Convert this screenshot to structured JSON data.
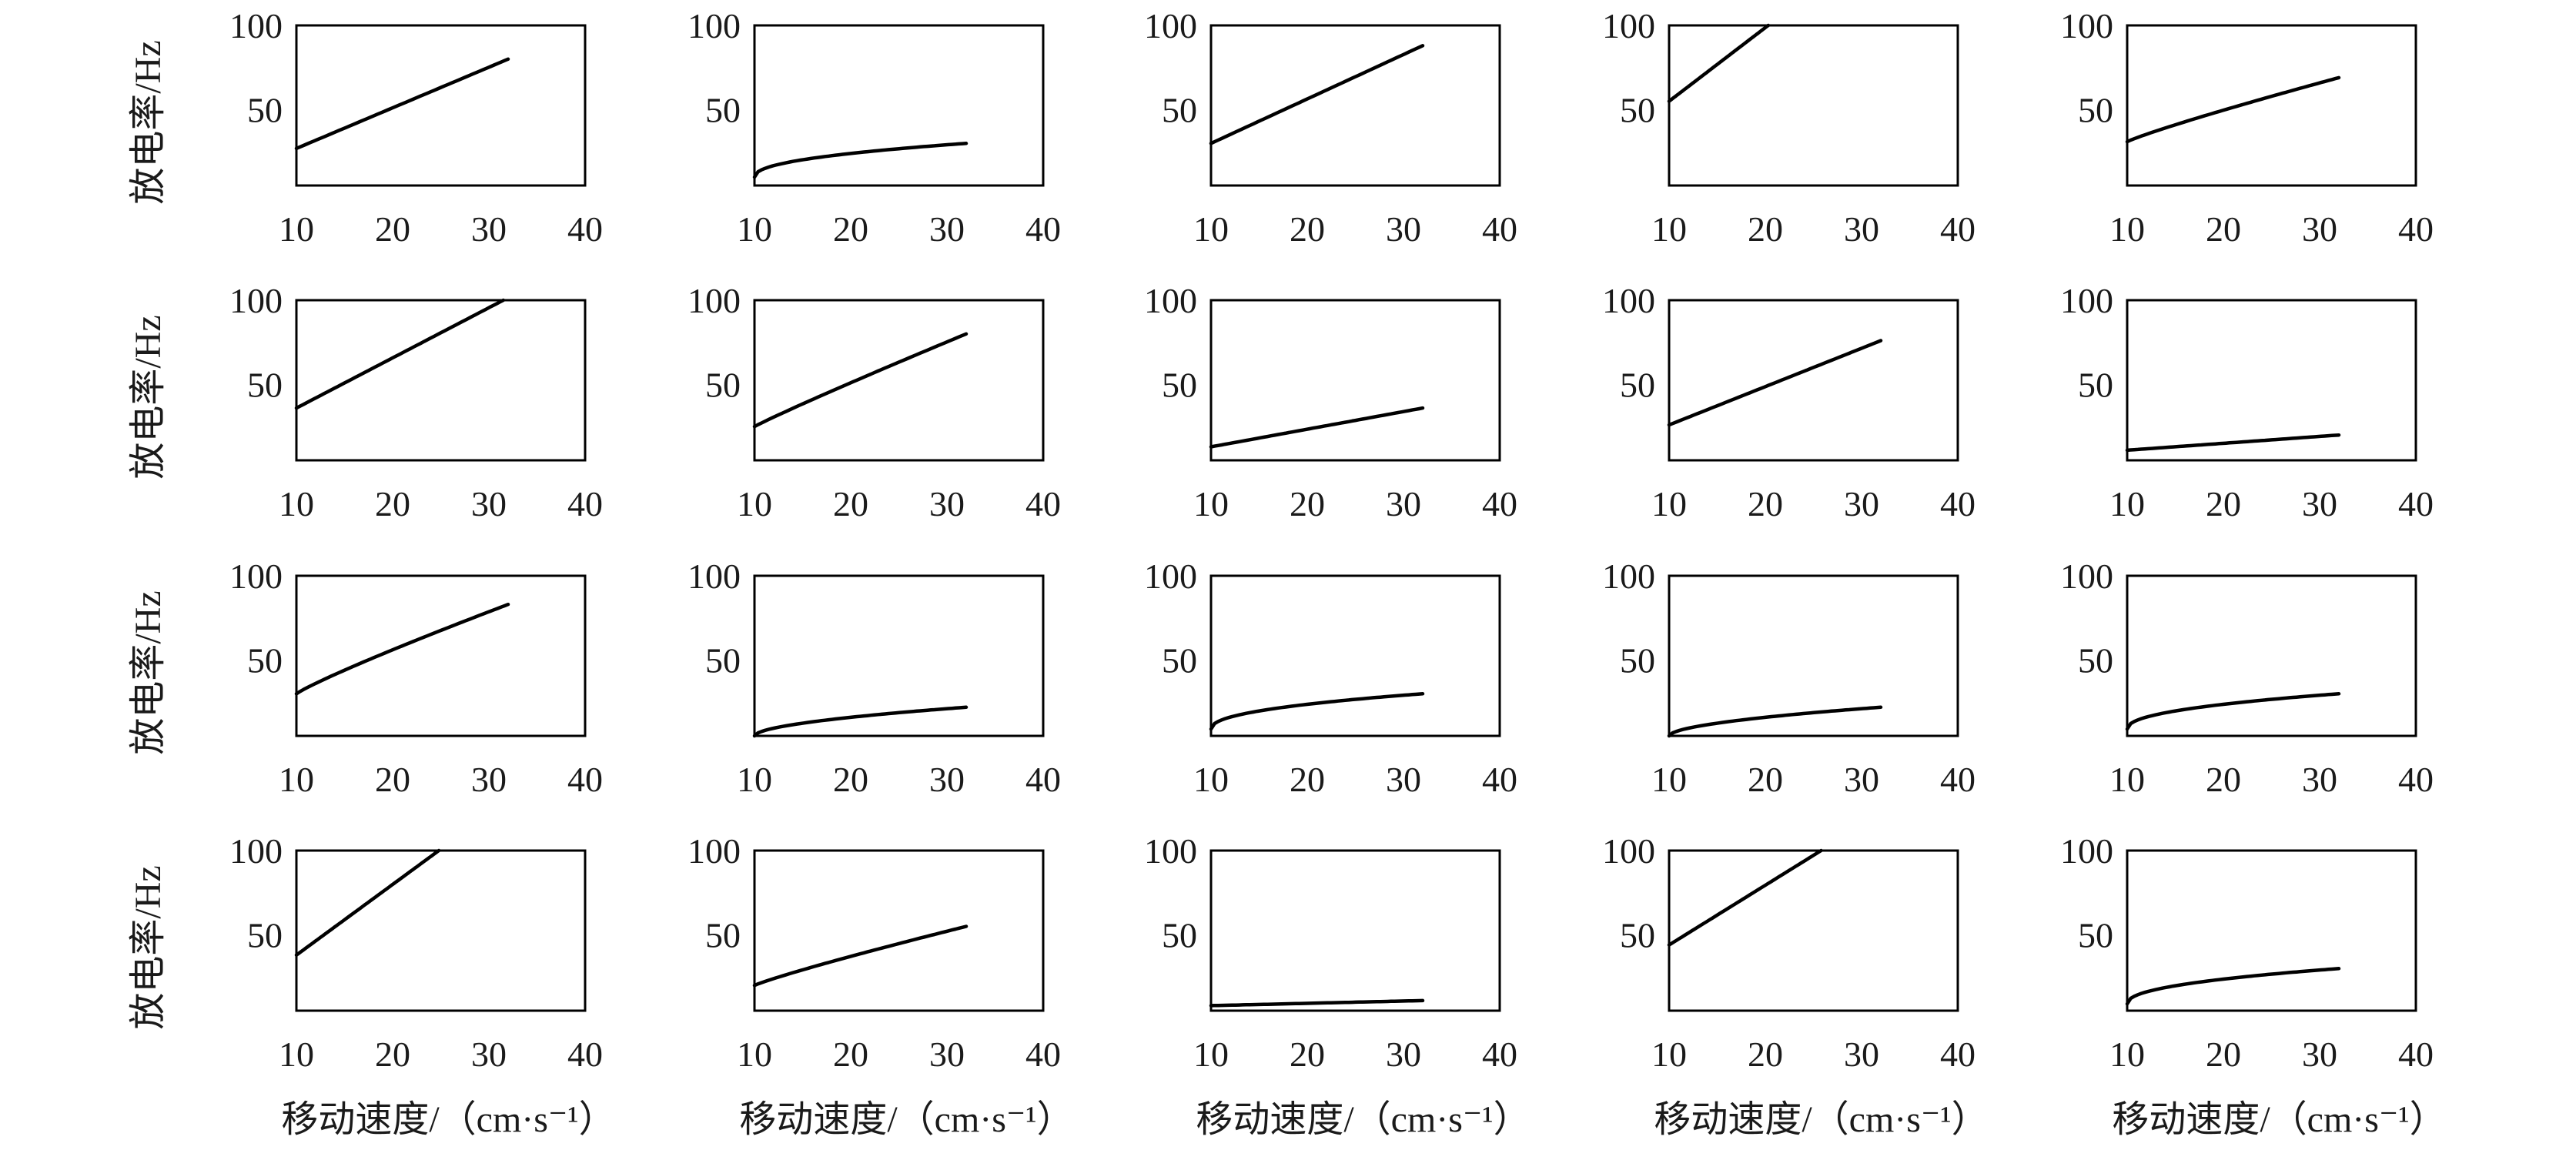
{
  "figure": {
    "rows": 4,
    "cols": 5,
    "y_axis_label": "放电率/Hz",
    "x_axis_label": "移动速度/（cm·s⁻¹）"
  },
  "chart_data": [
    {
      "type": "line",
      "row": 1,
      "col": 1,
      "xlim": [
        10,
        40
      ],
      "ylim": [
        5,
        100
      ],
      "xticks": [
        10,
        20,
        30,
        40
      ],
      "yticks": [
        50,
        100
      ],
      "ylabel": "放电率/Hz",
      "xlabel": "",
      "series": [
        {
          "x": [
            10,
            32
          ],
          "y": [
            27,
            80
          ],
          "exp": 1.0
        }
      ]
    },
    {
      "type": "line",
      "row": 1,
      "col": 2,
      "xlim": [
        10,
        40
      ],
      "ylim": [
        5,
        100
      ],
      "xticks": [
        10,
        20,
        30,
        40
      ],
      "yticks": [
        50,
        100
      ],
      "ylabel": "",
      "xlabel": "",
      "series": [
        {
          "x": [
            10,
            32
          ],
          "y": [
            10,
            30
          ],
          "exp": 0.45
        }
      ]
    },
    {
      "type": "line",
      "row": 1,
      "col": 3,
      "xlim": [
        10,
        40
      ],
      "ylim": [
        5,
        100
      ],
      "xticks": [
        10,
        20,
        30,
        40
      ],
      "yticks": [
        50,
        100
      ],
      "ylabel": "",
      "xlabel": "",
      "series": [
        {
          "x": [
            10,
            32
          ],
          "y": [
            30,
            88
          ],
          "exp": 1.0
        }
      ]
    },
    {
      "type": "line",
      "row": 1,
      "col": 4,
      "xlim": [
        10,
        40
      ],
      "ylim": [
        5,
        100
      ],
      "xticks": [
        10,
        20,
        30,
        40
      ],
      "yticks": [
        50,
        100
      ],
      "ylabel": "",
      "xlabel": "",
      "series": [
        {
          "x": [
            10,
            20.3
          ],
          "y": [
            55,
            100
          ],
          "exp": 1.0
        }
      ]
    },
    {
      "type": "line",
      "row": 1,
      "col": 5,
      "xlim": [
        10,
        40
      ],
      "ylim": [
        5,
        100
      ],
      "xticks": [
        10,
        20,
        30,
        40
      ],
      "yticks": [
        50,
        100
      ],
      "ylabel": "",
      "xlabel": "",
      "series": [
        {
          "x": [
            10,
            32
          ],
          "y": [
            31,
            69
          ],
          "exp": 0.9
        }
      ]
    },
    {
      "type": "line",
      "row": 2,
      "col": 1,
      "xlim": [
        10,
        40
      ],
      "ylim": [
        5,
        100
      ],
      "xticks": [
        10,
        20,
        30,
        40
      ],
      "yticks": [
        50,
        100
      ],
      "ylabel": "放电率/Hz",
      "xlabel": "",
      "series": [
        {
          "x": [
            10,
            31.5
          ],
          "y": [
            36,
            100
          ],
          "exp": 1.0
        }
      ]
    },
    {
      "type": "line",
      "row": 2,
      "col": 2,
      "xlim": [
        10,
        40
      ],
      "ylim": [
        5,
        100
      ],
      "xticks": [
        10,
        20,
        30,
        40
      ],
      "yticks": [
        50,
        100
      ],
      "ylabel": "",
      "xlabel": "",
      "series": [
        {
          "x": [
            10,
            32
          ],
          "y": [
            25,
            80
          ],
          "exp": 0.95
        }
      ]
    },
    {
      "type": "line",
      "row": 2,
      "col": 3,
      "xlim": [
        10,
        40
      ],
      "ylim": [
        5,
        100
      ],
      "xticks": [
        10,
        20,
        30,
        40
      ],
      "yticks": [
        50,
        100
      ],
      "ylabel": "",
      "xlabel": "",
      "series": [
        {
          "x": [
            10,
            32
          ],
          "y": [
            13,
            36
          ],
          "exp": 1.0
        }
      ]
    },
    {
      "type": "line",
      "row": 2,
      "col": 4,
      "xlim": [
        10,
        40
      ],
      "ylim": [
        5,
        100
      ],
      "xticks": [
        10,
        20,
        30,
        40
      ],
      "yticks": [
        50,
        100
      ],
      "ylabel": "",
      "xlabel": "",
      "series": [
        {
          "x": [
            10,
            32
          ],
          "y": [
            26,
            76
          ],
          "exp": 1.0
        }
      ]
    },
    {
      "type": "line",
      "row": 2,
      "col": 5,
      "xlim": [
        10,
        40
      ],
      "ylim": [
        5,
        100
      ],
      "xticks": [
        10,
        20,
        30,
        40
      ],
      "yticks": [
        50,
        100
      ],
      "ylabel": "",
      "xlabel": "",
      "series": [
        {
          "x": [
            10,
            32
          ],
          "y": [
            11,
            20
          ],
          "exp": 1.0
        }
      ]
    },
    {
      "type": "line",
      "row": 3,
      "col": 1,
      "xlim": [
        10,
        40
      ],
      "ylim": [
        5,
        100
      ],
      "xticks": [
        10,
        20,
        30,
        40
      ],
      "yticks": [
        50,
        100
      ],
      "ylabel": "放电率/Hz",
      "xlabel": "",
      "series": [
        {
          "x": [
            10,
            32
          ],
          "y": [
            30,
            83
          ],
          "exp": 0.9
        }
      ]
    },
    {
      "type": "line",
      "row": 3,
      "col": 2,
      "xlim": [
        10,
        40
      ],
      "ylim": [
        5,
        100
      ],
      "xticks": [
        10,
        20,
        30,
        40
      ],
      "yticks": [
        50,
        100
      ],
      "ylabel": "",
      "xlabel": "",
      "series": [
        {
          "x": [
            10,
            32
          ],
          "y": [
            5,
            22
          ],
          "exp": 0.55
        }
      ]
    },
    {
      "type": "line",
      "row": 3,
      "col": 3,
      "xlim": [
        10,
        40
      ],
      "ylim": [
        5,
        100
      ],
      "xticks": [
        10,
        20,
        30,
        40
      ],
      "yticks": [
        50,
        100
      ],
      "ylabel": "",
      "xlabel": "",
      "series": [
        {
          "x": [
            10,
            32
          ],
          "y": [
            9,
            30
          ],
          "exp": 0.45
        }
      ]
    },
    {
      "type": "line",
      "row": 3,
      "col": 4,
      "xlim": [
        10,
        40
      ],
      "ylim": [
        5,
        100
      ],
      "xticks": [
        10,
        20,
        30,
        40
      ],
      "yticks": [
        50,
        100
      ],
      "ylabel": "",
      "xlabel": "",
      "series": [
        {
          "x": [
            10,
            32
          ],
          "y": [
            5,
            22
          ],
          "exp": 0.55
        }
      ]
    },
    {
      "type": "line",
      "row": 3,
      "col": 5,
      "xlim": [
        10,
        40
      ],
      "ylim": [
        5,
        100
      ],
      "xticks": [
        10,
        20,
        30,
        40
      ],
      "yticks": [
        50,
        100
      ],
      "ylabel": "",
      "xlabel": "",
      "series": [
        {
          "x": [
            10,
            32
          ],
          "y": [
            9,
            30
          ],
          "exp": 0.45
        }
      ]
    },
    {
      "type": "line",
      "row": 4,
      "col": 1,
      "xlim": [
        10,
        40
      ],
      "ylim": [
        5,
        100
      ],
      "xticks": [
        10,
        20,
        30,
        40
      ],
      "yticks": [
        50,
        100
      ],
      "ylabel": "放电率/Hz",
      "xlabel": "移动速度/（cm·s⁻¹）",
      "series": [
        {
          "x": [
            10,
            24.8
          ],
          "y": [
            38,
            100
          ],
          "exp": 1.0
        }
      ]
    },
    {
      "type": "line",
      "row": 4,
      "col": 2,
      "xlim": [
        10,
        40
      ],
      "ylim": [
        5,
        100
      ],
      "xticks": [
        10,
        20,
        30,
        40
      ],
      "yticks": [
        50,
        100
      ],
      "ylabel": "",
      "xlabel": "移动速度/（cm·s⁻¹）",
      "series": [
        {
          "x": [
            10,
            32
          ],
          "y": [
            20,
            55
          ],
          "exp": 0.9
        }
      ]
    },
    {
      "type": "line",
      "row": 4,
      "col": 3,
      "xlim": [
        10,
        40
      ],
      "ylim": [
        5,
        100
      ],
      "xticks": [
        10,
        20,
        30,
        40
      ],
      "yticks": [
        50,
        100
      ],
      "ylabel": "",
      "xlabel": "移动速度/（cm·s⁻¹）",
      "series": [
        {
          "x": [
            10,
            32
          ],
          "y": [
            8,
            11
          ],
          "exp": 1.0
        }
      ]
    },
    {
      "type": "line",
      "row": 4,
      "col": 4,
      "xlim": [
        10,
        40
      ],
      "ylim": [
        5,
        100
      ],
      "xticks": [
        10,
        20,
        30,
        40
      ],
      "yticks": [
        50,
        100
      ],
      "ylabel": "",
      "xlabel": "移动速度/（cm·s⁻¹）",
      "series": [
        {
          "x": [
            10,
            25.8
          ],
          "y": [
            44,
            100
          ],
          "exp": 1.0
        }
      ]
    },
    {
      "type": "line",
      "row": 4,
      "col": 5,
      "xlim": [
        10,
        40
      ],
      "ylim": [
        5,
        100
      ],
      "xticks": [
        10,
        20,
        30,
        40
      ],
      "yticks": [
        50,
        100
      ],
      "ylabel": "",
      "xlabel": "移动速度/（cm·s⁻¹）",
      "series": [
        {
          "x": [
            10,
            32
          ],
          "y": [
            9,
            30
          ],
          "exp": 0.45
        }
      ]
    }
  ]
}
